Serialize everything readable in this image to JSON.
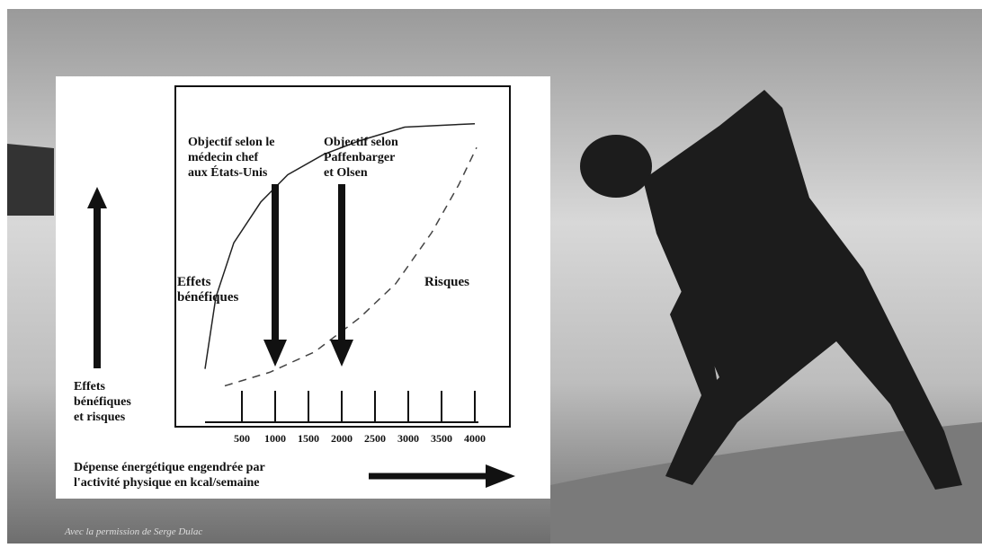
{
  "chart_data": {
    "type": "line",
    "annotations": [
      {
        "lines": [
          "Objectif selon le",
          "médecin chef",
          "aux États-Unis"
        ],
        "x": 1000
      },
      {
        "lines": [
          "Objectif selon",
          "Paffenbarger",
          "et Olsen"
        ],
        "x": 2000
      }
    ],
    "y_label": [
      "Effets",
      "bénéfiques",
      "et risques"
    ],
    "x_label": [
      "Dépense énergétique engendrée par",
      "l'activité physique en kcal/semaine"
    ],
    "series": [
      {
        "name": "Effets bénéfiques",
        "color": "#222222",
        "dash": false,
        "x": [
          -54,
          108,
          378,
          784,
          1189,
          1730,
          2270,
          2946,
          4000
        ],
        "values": [
          17,
          38,
          54,
          66,
          74,
          80,
          84,
          88,
          89
        ]
      },
      {
        "name": "Risques",
        "color": "#444444",
        "dash": true,
        "x": [
          243,
          919,
          1595,
          2270,
          2811,
          3351,
          3757,
          4027
        ],
        "values": [
          12,
          16,
          22,
          32,
          42,
          57,
          71,
          82
        ]
      }
    ],
    "xlim": [
      -500,
      4527
    ],
    "ylim": [
      0,
      100
    ],
    "xticks": [
      500,
      1000,
      1500,
      2000,
      2500,
      3000,
      3500,
      4000
    ],
    "credit": "Avec la permission de Serge Dulac"
  }
}
